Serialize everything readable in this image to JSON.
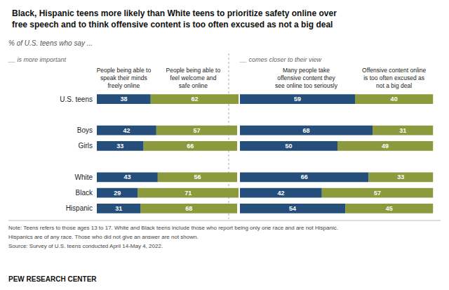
{
  "chart_data": [
    {
      "type": "bar",
      "orientation": "horizontal",
      "stacked": true,
      "data_labels": true,
      "tick_labels": "y",
      "grid": false,
      "title": "Black, Hispanic teens more likely than White teens to prioritize safety online over\nfree speech and to think offensive content is too often excused as not a big deal",
      "subtitle": "% of U.S. teens who say ...",
      "section_label": "__ is more important",
      "categories": [
        "U.S. teens",
        null,
        "Boys",
        "Girls",
        null,
        "White",
        "Black",
        "Hispanic"
      ],
      "series": [
        {
          "name": "People being able to\nspeak their minds\nfreely online",
          "color": "#264e7a",
          "values": [
            38,
            null,
            42,
            33,
            null,
            43,
            29,
            31
          ]
        },
        {
          "name": "People being able to\nfeel welcome and\nsafe online",
          "color": "#8a9a3c",
          "values": [
            62,
            null,
            57,
            66,
            null,
            56,
            71,
            68
          ]
        }
      ],
      "xlim": [
        0,
        100
      ],
      "notes": [
        "Note: Teens refers to those ages 13 to 17. White and Black teens include those who report being only one race and are not Hispanic.",
        "Hispanics are of any race. Those who did not give an answer are not shown.",
        "Source: Survey of U.S. teens conducted April 14-May 4, 2022."
      ],
      "source": "PEW RESEARCH CENTER"
    },
    {
      "type": "bar",
      "orientation": "horizontal",
      "stacked": true,
      "data_labels": true,
      "tick_labels": false,
      "grid": false,
      "section_label": "__ comes closer to their view",
      "categories": [
        "U.S. teens",
        null,
        "Boys",
        "Girls",
        null,
        "White",
        "Black",
        "Hispanic"
      ],
      "series": [
        {
          "name": "Many people take\noffensive content they\nsee online too seriously",
          "color": "#264e7a",
          "values": [
            59,
            null,
            68,
            50,
            null,
            66,
            42,
            54
          ]
        },
        {
          "name": "Offensive content online\nis too often excused as\nnot a big deal",
          "color": "#8a9a3c",
          "values": [
            40,
            null,
            31,
            49,
            null,
            33,
            57,
            45
          ]
        }
      ],
      "xlim": [
        0,
        100
      ]
    }
  ]
}
